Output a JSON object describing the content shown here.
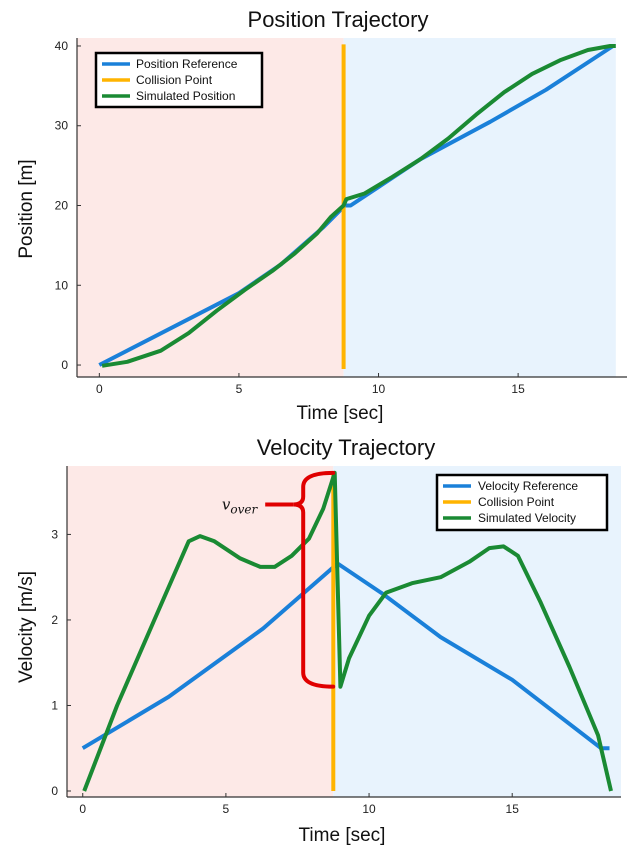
{
  "chart_data": [
    {
      "type": "line",
      "title": "Position Trajectory",
      "xlabel": "Time [sec]",
      "ylabel": "Position [m]",
      "xlim": [
        -0.8,
        18.9
      ],
      "ylim": [
        -1.5,
        41.0
      ],
      "xticks": [
        0,
        5,
        10,
        15
      ],
      "yticks": [
        0,
        10,
        20,
        30,
        40
      ],
      "grid": false,
      "legend_position": "top-left",
      "regions": [
        {
          "x0": -0.8,
          "x1": 8.75,
          "color": "#fde9e7"
        },
        {
          "x0": 8.75,
          "x1": 18.5,
          "color": "#e8f3fd"
        }
      ],
      "series": [
        {
          "name": "Position Reference",
          "color": "#1a80d9",
          "points": [
            [
              0,
              0
            ],
            [
              5,
              9.0
            ],
            [
              6.5,
              12.6
            ],
            [
              8.0,
              17.2
            ],
            [
              8.8,
              20.0
            ],
            [
              9.0,
              20.0
            ],
            [
              11.5,
              25.8
            ],
            [
              14,
              30.5
            ],
            [
              16,
              34.5
            ],
            [
              18.4,
              40
            ]
          ]
        },
        {
          "name": "Collision Point",
          "color": "#ffb400",
          "points": [
            [
              8.75,
              -0.5
            ],
            [
              8.75,
              40.2
            ]
          ]
        },
        {
          "name": "Simulated Position",
          "color": "#1a8a33",
          "points": [
            [
              0.1,
              -0.1
            ],
            [
              1.0,
              0.4
            ],
            [
              2.2,
              1.8
            ],
            [
              3.2,
              4.0
            ],
            [
              4.2,
              6.8
            ],
            [
              5.2,
              9.4
            ],
            [
              6.2,
              11.8
            ],
            [
              7.0,
              14.0
            ],
            [
              7.8,
              16.5
            ],
            [
              8.3,
              18.6
            ],
            [
              8.75,
              20.0
            ],
            [
              8.85,
              20.8
            ],
            [
              9.5,
              21.5
            ],
            [
              10.5,
              23.6
            ],
            [
              11.5,
              25.8
            ],
            [
              12.5,
              28.4
            ],
            [
              13.5,
              31.4
            ],
            [
              14.5,
              34.2
            ],
            [
              15.5,
              36.5
            ],
            [
              16.5,
              38.2
            ],
            [
              17.5,
              39.5
            ],
            [
              18.3,
              40
            ],
            [
              18.5,
              40
            ]
          ]
        }
      ]
    },
    {
      "type": "line",
      "title": "Velocity Trajectory",
      "xlabel": "Time [sec]",
      "ylabel": "Velocity [m/s]",
      "xlim": [
        -0.55,
        18.8
      ],
      "ylim": [
        -0.07,
        3.8
      ],
      "xticks": [
        0,
        5,
        10,
        15
      ],
      "yticks": [
        0,
        1,
        2,
        3
      ],
      "grid": false,
      "legend_position": "top-right",
      "regions": [
        {
          "x0": -0.55,
          "x1": 8.75,
          "color": "#fde9e7"
        },
        {
          "x0": 8.75,
          "x1": 18.8,
          "color": "#e8f3fd"
        }
      ],
      "annotation": {
        "text": "v",
        "subscript": "over",
        "brace_x": 7.7,
        "brace_y0": 1.22,
        "brace_y1": 3.72,
        "color": "#e00000"
      },
      "series": [
        {
          "name": "Velocity Reference",
          "color": "#1a80d9",
          "points": [
            [
              0,
              0.5
            ],
            [
              3,
              1.1
            ],
            [
              6.3,
              1.9
            ],
            [
              8.9,
              2.66
            ],
            [
              10.5,
              2.3
            ],
            [
              12.5,
              1.8
            ],
            [
              15,
              1.3
            ],
            [
              18.1,
              0.5
            ],
            [
              18.4,
              0.5
            ]
          ]
        },
        {
          "name": "Collision Point",
          "color": "#ffb400",
          "points": [
            [
              8.75,
              0.0
            ],
            [
              8.75,
              3.74
            ]
          ]
        },
        {
          "name": "Simulated Velocity",
          "color": "#1a8a33",
          "points": [
            [
              0.05,
              0.0
            ],
            [
              1.2,
              1.0
            ],
            [
              2.5,
              2.0
            ],
            [
              3.7,
              2.92
            ],
            [
              4.1,
              2.98
            ],
            [
              4.6,
              2.92
            ],
            [
              5.5,
              2.72
            ],
            [
              6.2,
              2.62
            ],
            [
              6.7,
              2.62
            ],
            [
              7.3,
              2.75
            ],
            [
              7.9,
              2.95
            ],
            [
              8.4,
              3.3
            ],
            [
              8.8,
              3.72
            ],
            [
              9.0,
              1.22
            ],
            [
              9.3,
              1.55
            ],
            [
              10.0,
              2.05
            ],
            [
              10.6,
              2.32
            ],
            [
              11.5,
              2.43
            ],
            [
              12.5,
              2.5
            ],
            [
              13.5,
              2.68
            ],
            [
              14.2,
              2.84
            ],
            [
              14.7,
              2.86
            ],
            [
              15.2,
              2.75
            ],
            [
              16.0,
              2.2
            ],
            [
              17.0,
              1.45
            ],
            [
              18.0,
              0.65
            ],
            [
              18.45,
              0.0
            ]
          ]
        }
      ]
    }
  ]
}
